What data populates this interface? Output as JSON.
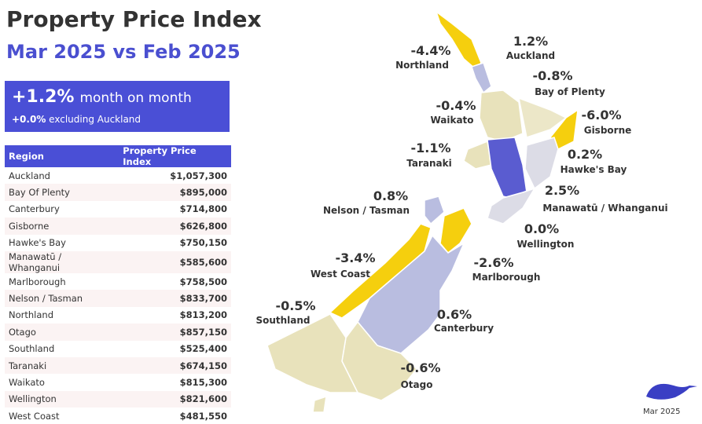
{
  "header": {
    "title": "Property Price Index",
    "subtitle": "Mar 2025 vs Feb 2025"
  },
  "summary": {
    "headline": "+1.2%",
    "headline_text": "month on month",
    "sub": "+0.0%",
    "sub_text": "excluding Auckland"
  },
  "table": {
    "columns": [
      "Region",
      "Property Price Index"
    ],
    "rows": [
      [
        "Auckland",
        "$1,057,300"
      ],
      [
        "Bay Of Plenty",
        "$895,000"
      ],
      [
        "Canterbury",
        "$714,800"
      ],
      [
        "Gisborne",
        "$626,800"
      ],
      [
        "Hawke's Bay",
        "$750,150"
      ],
      [
        "Manawatū / Whanganui",
        "$585,600"
      ],
      [
        "Marlborough",
        "$758,500"
      ],
      [
        "Nelson / Tasman",
        "$833,700"
      ],
      [
        "Northland",
        "$813,200"
      ],
      [
        "Otago",
        "$857,150"
      ],
      [
        "Southland",
        "$525,400"
      ],
      [
        "Taranaki",
        "$674,150"
      ],
      [
        "Waikato",
        "$815,300"
      ],
      [
        "Wellington",
        "$821,600"
      ],
      [
        "West Coast",
        "$481,550"
      ]
    ]
  },
  "map": {
    "regions": [
      {
        "name": "Northland",
        "change": "-4.4%"
      },
      {
        "name": "Auckland",
        "change": "1.2%"
      },
      {
        "name": "Bay of Plenty",
        "change": "-0.8%"
      },
      {
        "name": "Waikato",
        "change": "-0.4%"
      },
      {
        "name": "Gisborne",
        "change": "-6.0%"
      },
      {
        "name": "Taranaki",
        "change": "-1.1%"
      },
      {
        "name": "Hawke's Bay",
        "change": "0.2%"
      },
      {
        "name": "Manawatū / Whanganui",
        "change": "2.5%"
      },
      {
        "name": "Nelson / Tasman",
        "change": "0.8%"
      },
      {
        "name": "Wellington",
        "change": "0.0%"
      },
      {
        "name": "West Coast",
        "change": "-3.4%"
      },
      {
        "name": "Marlborough",
        "change": "-2.6%"
      },
      {
        "name": "Southland",
        "change": "-0.5%"
      },
      {
        "name": "Canterbury",
        "change": "0.6%"
      },
      {
        "name": "Otago",
        "change": "-0.6%"
      }
    ]
  },
  "footer": {
    "date": "Mar 2025"
  }
}
